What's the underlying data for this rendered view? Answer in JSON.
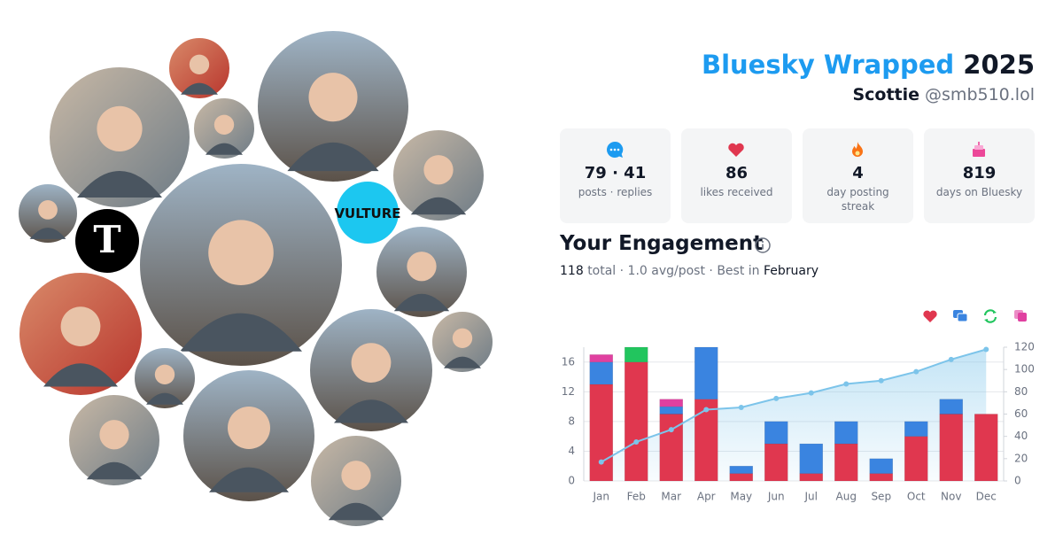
{
  "header": {
    "title": "Bluesky Wrapped",
    "year": "2025",
    "name": "Scottie",
    "handle": "@smb510.lol"
  },
  "logos": {
    "vulture": "VULTURE",
    "nyt": "T"
  },
  "stats": [
    {
      "value": "79 · 41",
      "label": "posts · replies"
    },
    {
      "value": "86",
      "label": "likes received"
    },
    {
      "value": "4",
      "label": "day posting streak"
    },
    {
      "value": "819",
      "label": "days on Bluesky"
    }
  ],
  "engagement": {
    "title": "Your Engagement",
    "total": "118",
    "summary": "total · 1.0 avg/post · Best in",
    "best": "February"
  },
  "chart_data": {
    "type": "bar",
    "categories": [
      "Jan",
      "Feb",
      "Mar",
      "Apr",
      "May",
      "Jun",
      "Jul",
      "Aug",
      "Sep",
      "Oct",
      "Nov",
      "Dec"
    ],
    "series": [
      {
        "color": "#e0374f",
        "values": [
          13,
          16,
          9,
          11,
          1,
          5,
          1,
          5,
          1,
          6,
          9,
          9
        ]
      },
      {
        "color": "#3a84e0",
        "values": [
          3,
          0,
          1,
          7,
          1,
          3,
          4,
          3,
          2,
          2,
          2,
          0
        ]
      },
      {
        "color": "#22c55e",
        "values": [
          0,
          2,
          0,
          0,
          0,
          0,
          0,
          0,
          0,
          0,
          0,
          0
        ]
      },
      {
        "color": "#e040a0",
        "values": [
          1,
          0,
          1,
          0,
          0,
          0,
          0,
          0,
          0,
          0,
          0,
          0
        ]
      },
      {
        "color": "#7cc4ea",
        "axis": "y2",
        "type": "line",
        "values": [
          17,
          35,
          46,
          64,
          66,
          74,
          79,
          87,
          90,
          98,
          109,
          118
        ]
      }
    ],
    "ylim": [
      0,
      18
    ],
    "yticks": [
      0,
      4,
      8,
      12,
      16
    ],
    "y2lim": [
      0,
      120
    ],
    "y2ticks": [
      0,
      20,
      40,
      60,
      80,
      100,
      120
    ],
    "grid": true
  }
}
